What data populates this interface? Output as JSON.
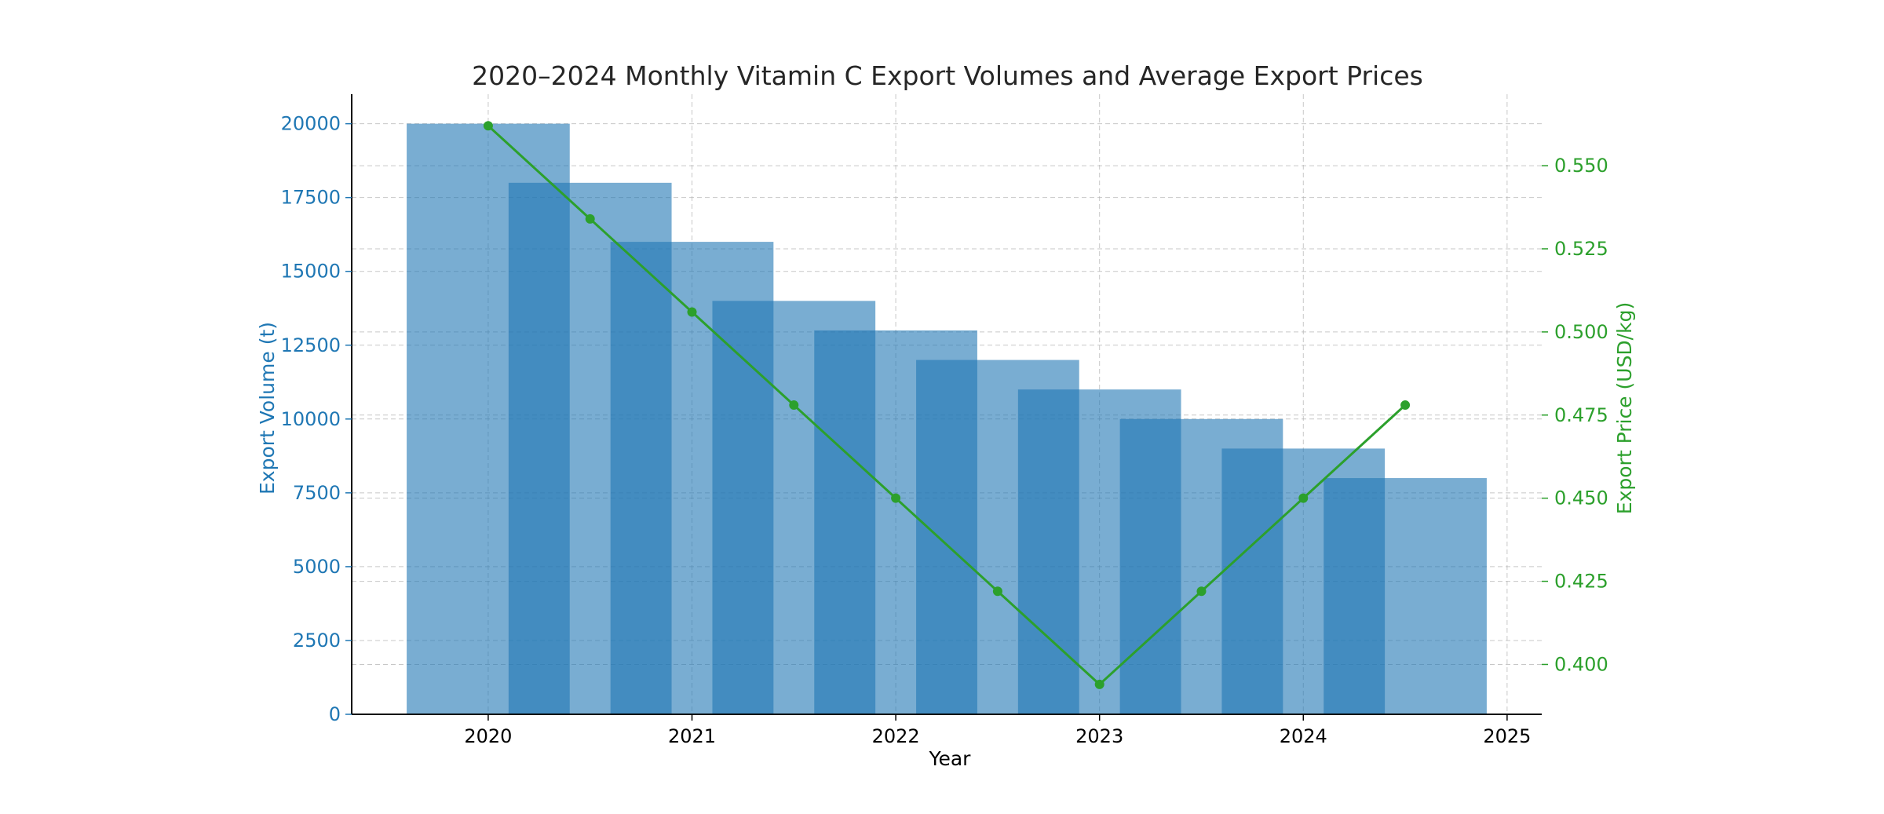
{
  "chart_data": {
    "type": "bar",
    "title": "2020–2024 Monthly Vitamin C Export Volumes and Average Export Prices",
    "xlabel": "Year",
    "ylabel": "Export Volume (t)",
    "y2label": "Export Price (USD/kg)",
    "x_ticks": [
      "2020",
      "2021",
      "2022",
      "2023",
      "2024",
      "2025"
    ],
    "x_tick_values": [
      2020,
      2021,
      2022,
      2023,
      2024,
      2025
    ],
    "y_ticks": [
      "0",
      "2500",
      "5000",
      "7500",
      "10000",
      "12500",
      "15000",
      "17500",
      "20000"
    ],
    "y_tick_values": [
      0,
      2500,
      5000,
      7500,
      10000,
      12500,
      15000,
      17500,
      20000
    ],
    "y2_ticks": [
      "0.400",
      "0.425",
      "0.450",
      "0.475",
      "0.500",
      "0.525",
      "0.550"
    ],
    "y2_tick_values": [
      0.4,
      0.425,
      0.45,
      0.475,
      0.5,
      0.525,
      0.55
    ],
    "xlim": [
      2019.33,
      2025.17
    ],
    "ylim": [
      0,
      21000
    ],
    "y2lim": [
      0.385,
      0.5715
    ],
    "grid": true,
    "bar_width_years": 0.8,
    "series": [
      {
        "name": "Export Volume (t)",
        "type": "bar",
        "color": "#1f77b4",
        "x": [
          2020.0,
          2020.5,
          2021.0,
          2021.5,
          2022.0,
          2022.5,
          2023.0,
          2023.5,
          2024.0,
          2024.5
        ],
        "values": [
          20000,
          18000,
          16000,
          14000,
          13000,
          12000,
          11000,
          10000,
          9000,
          8000
        ]
      },
      {
        "name": "Export Price (USD/kg)",
        "type": "line",
        "color": "#2ca02c",
        "axis": "right",
        "x": [
          2020.0,
          2020.5,
          2021.0,
          2021.5,
          2022.0,
          2022.5,
          2023.0,
          2023.5,
          2024.0,
          2024.5
        ],
        "values": [
          0.562,
          0.534,
          0.506,
          0.478,
          0.45,
          0.422,
          0.394,
          0.422,
          0.45,
          0.478
        ]
      }
    ],
    "colors": {
      "left_axis": "#1f77b4",
      "right_axis": "#2ca02c",
      "text": "#262626",
      "grid": "#b0b0b0"
    }
  }
}
